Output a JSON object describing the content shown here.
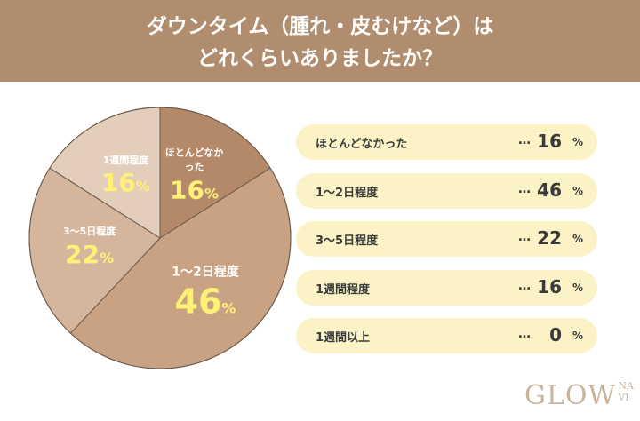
{
  "header": {
    "title_line1": "ダウンタイム（腫れ・皮むけなど）は",
    "title_line2": "どれくらいありましたか？"
  },
  "chart_data": {
    "type": "pie",
    "categories": [
      "ほとんどなかった",
      "1〜2日程度",
      "3〜5日程度",
      "1週間程度",
      "1週間以上"
    ],
    "values": [
      16,
      46,
      22,
      16,
      0
    ],
    "colors": [
      "#b3896a",
      "#c9a183",
      "#d5b69d",
      "#e3cdbb",
      "#eddccd"
    ],
    "unit": "%",
    "leader": "…"
  },
  "brand": {
    "main": "GLOW",
    "sub1": "NA",
    "sub2": "VI"
  }
}
